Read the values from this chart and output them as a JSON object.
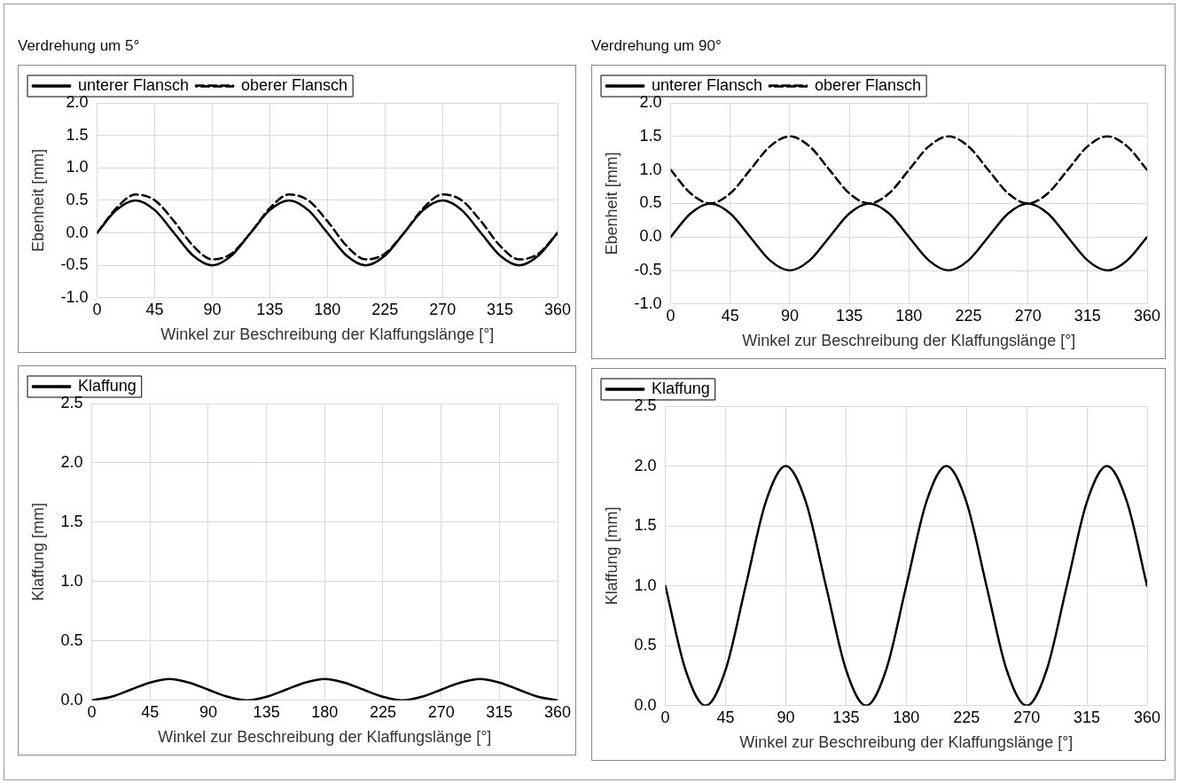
{
  "chart_data": [
    {
      "type": "line",
      "title": "Verdrehung um 5°",
      "xlabel": "Winkel zur Beschreibung der Klaffungslänge [°]",
      "ylabel": "Ebenheit [mm]",
      "x": [
        0,
        15,
        30,
        45,
        60,
        75,
        90,
        105,
        120,
        135,
        150,
        165,
        180,
        195,
        210,
        225,
        240,
        255,
        270,
        285,
        300,
        315,
        330,
        345,
        360
      ],
      "series": [
        {
          "name": "unterer Flansch",
          "color": "#000000",
          "line_style": "solid",
          "values": [
            0,
            0.35,
            0.5,
            0.35,
            0,
            -0.35,
            -0.5,
            -0.35,
            0,
            0.35,
            0.5,
            0.35,
            0,
            -0.35,
            -0.5,
            -0.35,
            0,
            0.35,
            0.5,
            0.35,
            0,
            -0.35,
            -0.5,
            -0.35,
            0
          ]
        },
        {
          "name": "oberer Flansch",
          "color": "#000000",
          "line_style": "dashed",
          "values": [
            0,
            0.38,
            0.59,
            0.5,
            0.18,
            -0.2,
            -0.41,
            -0.32,
            0,
            0.38,
            0.59,
            0.5,
            0.18,
            -0.2,
            -0.41,
            -0.32,
            0,
            0.38,
            0.59,
            0.5,
            0.18,
            -0.2,
            -0.41,
            -0.32,
            0
          ]
        }
      ],
      "xlim": [
        0,
        360
      ],
      "xticks": [
        0,
        45,
        90,
        135,
        180,
        225,
        270,
        315,
        360
      ],
      "ylim": [
        -1,
        2
      ],
      "yticks": [
        {
          "value": -1,
          "label": "-1.0"
        },
        {
          "value": -0.5,
          "label": "-0.5"
        },
        {
          "value": 0,
          "label": "0.0"
        },
        {
          "value": 0.5,
          "label": "0.5"
        },
        {
          "value": 1,
          "label": "1.0"
        },
        {
          "value": 1.5,
          "label": "1.5"
        },
        {
          "value": 2,
          "label": "2.0"
        }
      ],
      "grid": true,
      "legend": "top left",
      "marker": "none"
    },
    {
      "type": "line",
      "title": "Verdrehung um 90°",
      "xlabel": "Winkel zur Beschreibung der Klaffungslänge [°]",
      "ylabel": "Ebenheit [mm]",
      "x": [
        0,
        15,
        30,
        45,
        60,
        75,
        90,
        105,
        120,
        135,
        150,
        165,
        180,
        195,
        210,
        225,
        240,
        255,
        270,
        285,
        300,
        315,
        330,
        345,
        360
      ],
      "series": [
        {
          "name": "unterer Flansch",
          "color": "#000000",
          "line_style": "solid",
          "values": [
            0,
            0.35,
            0.5,
            0.35,
            0,
            -0.35,
            -0.5,
            -0.35,
            0,
            0.35,
            0.5,
            0.35,
            0,
            -0.35,
            -0.5,
            -0.35,
            0,
            0.35,
            0.5,
            0.35,
            0,
            -0.35,
            -0.5,
            -0.35,
            0
          ]
        },
        {
          "name": "oberer Flansch",
          "color": "#000000",
          "line_style": "dashed",
          "values": [
            1,
            0.65,
            0.5,
            0.65,
            1,
            1.35,
            1.5,
            1.35,
            1,
            0.65,
            0.5,
            0.65,
            1,
            1.35,
            1.5,
            1.35,
            1,
            0.65,
            0.5,
            0.65,
            1,
            1.35,
            1.5,
            1.35,
            1
          ]
        }
      ],
      "xlim": [
        0,
        360
      ],
      "xticks": [
        0,
        45,
        90,
        135,
        180,
        225,
        270,
        315,
        360
      ],
      "ylim": [
        -1,
        2
      ],
      "yticks": [
        {
          "value": -1,
          "label": "-1.0"
        },
        {
          "value": -0.5,
          "label": "-0.5"
        },
        {
          "value": 0,
          "label": "0.0"
        },
        {
          "value": 0.5,
          "label": "0.5"
        },
        {
          "value": 1,
          "label": "1.0"
        },
        {
          "value": 1.5,
          "label": "1.5"
        },
        {
          "value": 2,
          "label": "2.0"
        }
      ],
      "grid": true,
      "legend": "top left",
      "marker": "none"
    },
    {
      "type": "line",
      "xlabel": "Winkel zur Beschreibung der Klaffungslänge [°]",
      "ylabel": "Klaffung [mm]",
      "x": [
        0,
        15,
        30,
        45,
        60,
        75,
        90,
        105,
        120,
        135,
        150,
        165,
        180,
        195,
        210,
        225,
        240,
        255,
        270,
        285,
        300,
        315,
        330,
        345,
        360
      ],
      "series": [
        {
          "name": "Klaffung",
          "color": "#000000",
          "line_style": "solid",
          "values": [
            0,
            0.03,
            0.09,
            0.15,
            0.18,
            0.15,
            0.09,
            0.03,
            0,
            0.03,
            0.09,
            0.15,
            0.18,
            0.15,
            0.09,
            0.03,
            0,
            0.03,
            0.09,
            0.15,
            0.18,
            0.15,
            0.09,
            0.03,
            0
          ]
        }
      ],
      "xlim": [
        0,
        360
      ],
      "xticks": [
        0,
        45,
        90,
        135,
        180,
        225,
        270,
        315,
        360
      ],
      "ylim": [
        0,
        2.5
      ],
      "yticks": [
        {
          "value": 0,
          "label": "0.0"
        },
        {
          "value": 0.5,
          "label": "0.5"
        },
        {
          "value": 1,
          "label": "1.0"
        },
        {
          "value": 1.5,
          "label": "1.5"
        },
        {
          "value": 2,
          "label": "2.0"
        },
        {
          "value": 2.5,
          "label": "2.5"
        }
      ],
      "grid": true,
      "legend": "top left",
      "marker": "none"
    },
    {
      "type": "line",
      "xlabel": "Winkel zur Beschreibung der Klaffungslänge [°]",
      "ylabel": "Klaffung [mm]",
      "x": [
        0,
        15,
        30,
        45,
        60,
        75,
        90,
        105,
        120,
        135,
        150,
        165,
        180,
        195,
        210,
        225,
        240,
        255,
        270,
        285,
        300,
        315,
        330,
        345,
        360
      ],
      "series": [
        {
          "name": "Klaffung",
          "color": "#000000",
          "line_style": "solid",
          "values": [
            1,
            0.3,
            0,
            0.3,
            1,
            1.7,
            2,
            1.7,
            1,
            0.3,
            0,
            0.3,
            1,
            1.7,
            2,
            1.7,
            1,
            0.3,
            0,
            0.3,
            1,
            1.7,
            2,
            1.7,
            1
          ]
        }
      ],
      "xlim": [
        0,
        360
      ],
      "xticks": [
        0,
        45,
        90,
        135,
        180,
        225,
        270,
        315,
        360
      ],
      "ylim": [
        0,
        2.5
      ],
      "yticks": [
        {
          "value": 0,
          "label": "0.0"
        },
        {
          "value": 0.5,
          "label": "0.5"
        },
        {
          "value": 1,
          "label": "1.0"
        },
        {
          "value": 1.5,
          "label": "1.5"
        },
        {
          "value": 2,
          "label": "2.0"
        },
        {
          "value": 2.5,
          "label": "2.5"
        }
      ],
      "grid": true,
      "legend": "top left",
      "marker": "none"
    }
  ]
}
